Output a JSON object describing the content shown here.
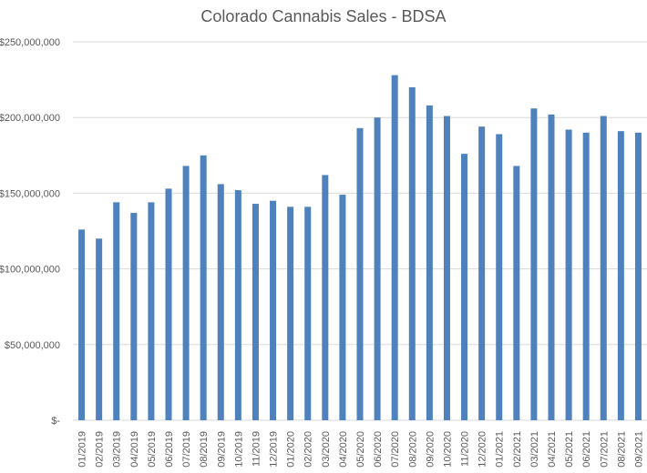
{
  "chart_data": {
    "type": "bar",
    "title": "Colorado Cannabis Sales - BDSA",
    "xlabel": "",
    "ylabel": "",
    "ylim": [
      0,
      250000000
    ],
    "yticks": [
      0,
      50000000,
      100000000,
      150000000,
      200000000,
      250000000
    ],
    "ytick_labels": [
      "$-",
      "$50,000,000",
      "$100,000,000",
      "$150,000,000",
      "$200,000,000",
      "$250,000,000"
    ],
    "grid": true,
    "bar_color": "#4F81BD",
    "grid_color": "#D9D9D9",
    "categories": [
      "01/2019",
      "02/2019",
      "03/2019",
      "04/2019",
      "05/2019",
      "06/2019",
      "07/2019",
      "08/2019",
      "09/2019",
      "10/2019",
      "11/2019",
      "12/2019",
      "01/2020",
      "02/2020",
      "03/2020",
      "04/2020",
      "05/2020",
      "06/2020",
      "07/2020",
      "08/2020",
      "09/2020",
      "10/2020",
      "11/2020",
      "12/2020",
      "01/2021",
      "02/2021",
      "03/2021",
      "04/2021",
      "05/2021",
      "06/2021",
      "07/2021",
      "08/2021",
      "09/2021"
    ],
    "values": [
      126000000,
      120000000,
      144000000,
      137000000,
      144000000,
      153000000,
      168000000,
      175000000,
      156000000,
      152000000,
      143000000,
      145000000,
      141000000,
      141000000,
      162000000,
      149000000,
      193000000,
      200000000,
      228000000,
      220000000,
      208000000,
      201000000,
      176000000,
      194000000,
      189000000,
      168000000,
      206000000,
      202000000,
      192000000,
      190000000,
      201000000,
      191000000,
      190000000
    ]
  }
}
